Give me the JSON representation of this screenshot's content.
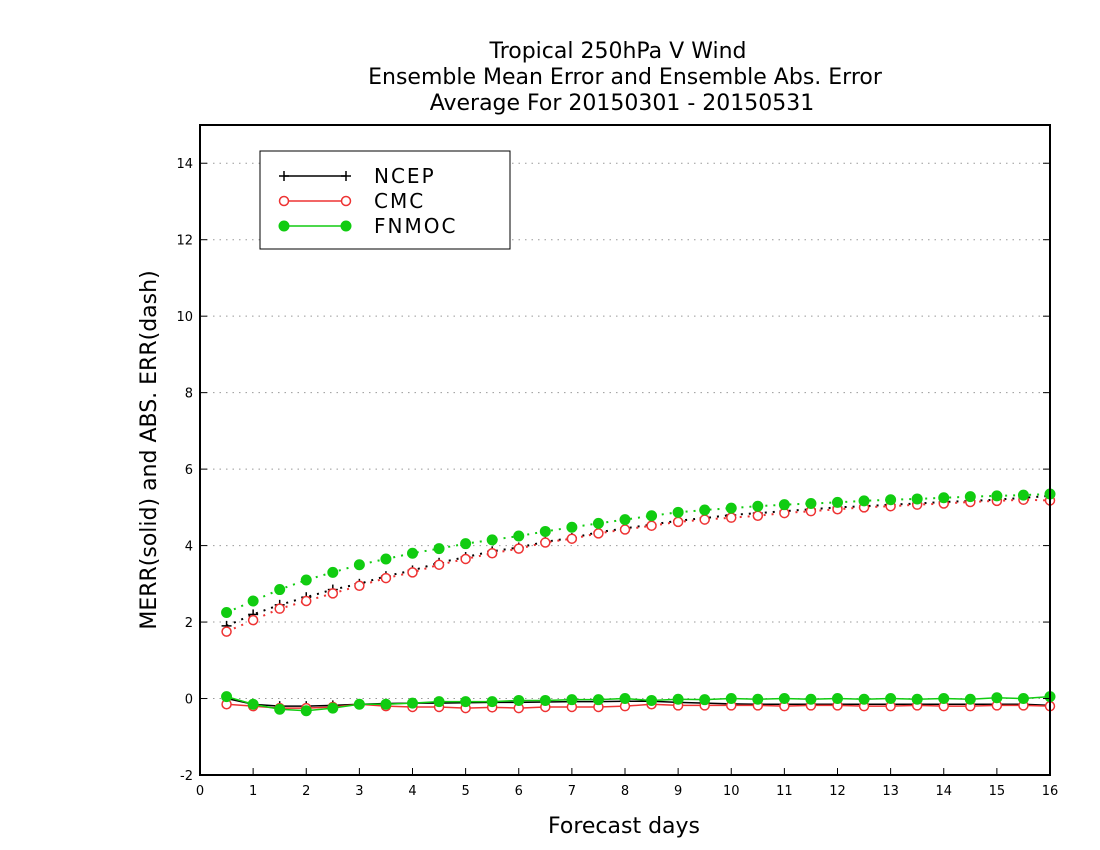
{
  "chart_data": {
    "type": "line",
    "title_lines": [
      "Tropical 250hPa V Wind",
      "Ensemble Mean Error and Ensemble Abs. Error",
      "Average For 20150301 - 20150531"
    ],
    "xlabel": "Forecast days",
    "ylabel": "MERR(solid) and ABS. ERR(dash)",
    "xlim": [
      0,
      16
    ],
    "ylim": [
      -2,
      15
    ],
    "xticks": [
      0,
      1,
      2,
      3,
      4,
      5,
      6,
      7,
      8,
      9,
      10,
      11,
      12,
      13,
      14,
      15,
      16
    ],
    "yticks": [
      -2,
      0,
      2,
      4,
      6,
      8,
      10,
      12,
      14
    ],
    "grid": "horizontal dotted",
    "legend_position": "top-left",
    "x": [
      0.5,
      1,
      1.5,
      2,
      2.5,
      3,
      3.5,
      4,
      4.5,
      5,
      5.5,
      6,
      6.5,
      7,
      7.5,
      8,
      8.5,
      9,
      9.5,
      10,
      10.5,
      11,
      11.5,
      12,
      12.5,
      13,
      13.5,
      14,
      14.5,
      15,
      15.5,
      16
    ],
    "series": [
      {
        "name": "NCEP",
        "color": "#000000",
        "marker": "plus",
        "merr": [
          0.0,
          -0.15,
          -0.2,
          -0.2,
          -0.18,
          -0.15,
          -0.13,
          -0.12,
          -0.12,
          -0.11,
          -0.1,
          -0.1,
          -0.09,
          -0.08,
          -0.08,
          -0.07,
          -0.07,
          -0.1,
          -0.12,
          -0.14,
          -0.15,
          -0.15,
          -0.15,
          -0.15,
          -0.15,
          -0.15,
          -0.15,
          -0.15,
          -0.15,
          -0.15,
          -0.15,
          -0.18
        ],
        "abs_err": [
          1.9,
          2.2,
          2.45,
          2.65,
          2.85,
          3.0,
          3.2,
          3.35,
          3.55,
          3.7,
          3.85,
          3.95,
          4.1,
          4.2,
          4.35,
          4.45,
          4.55,
          4.65,
          4.72,
          4.8,
          4.85,
          4.9,
          4.95,
          5.0,
          5.03,
          5.07,
          5.1,
          5.14,
          5.17,
          5.2,
          5.25,
          5.3
        ]
      },
      {
        "name": "CMC",
        "color": "#ee3333",
        "marker": "open-circle",
        "merr": [
          -0.15,
          -0.2,
          -0.25,
          -0.25,
          -0.22,
          -0.15,
          -0.2,
          -0.22,
          -0.22,
          -0.25,
          -0.23,
          -0.25,
          -0.22,
          -0.22,
          -0.22,
          -0.2,
          -0.15,
          -0.18,
          -0.18,
          -0.18,
          -0.18,
          -0.2,
          -0.18,
          -0.18,
          -0.2,
          -0.2,
          -0.18,
          -0.2,
          -0.2,
          -0.18,
          -0.18,
          -0.2
        ],
        "abs_err": [
          1.75,
          2.05,
          2.35,
          2.55,
          2.75,
          2.95,
          3.15,
          3.3,
          3.5,
          3.65,
          3.8,
          3.92,
          4.08,
          4.18,
          4.32,
          4.42,
          4.52,
          4.62,
          4.68,
          4.73,
          4.78,
          4.85,
          4.9,
          4.95,
          5.0,
          5.03,
          5.07,
          5.1,
          5.14,
          5.17,
          5.2,
          5.18
        ]
      },
      {
        "name": "FNMOC",
        "color": "#11cc11",
        "marker": "filled-circle",
        "merr": [
          0.05,
          -0.15,
          -0.28,
          -0.32,
          -0.25,
          -0.15,
          -0.15,
          -0.12,
          -0.08,
          -0.08,
          -0.08,
          -0.05,
          -0.05,
          -0.03,
          -0.03,
          0.0,
          -0.05,
          -0.02,
          -0.03,
          0.0,
          -0.02,
          0.0,
          -0.02,
          0.0,
          -0.02,
          0.0,
          -0.02,
          0.0,
          -0.02,
          0.02,
          0.0,
          0.05
        ],
        "abs_err": [
          2.25,
          2.55,
          2.85,
          3.1,
          3.3,
          3.5,
          3.65,
          3.8,
          3.92,
          4.05,
          4.15,
          4.25,
          4.37,
          4.48,
          4.58,
          4.68,
          4.78,
          4.87,
          4.93,
          4.98,
          5.03,
          5.07,
          5.1,
          5.13,
          5.17,
          5.2,
          5.22,
          5.25,
          5.28,
          5.3,
          5.32,
          5.35
        ]
      }
    ]
  }
}
